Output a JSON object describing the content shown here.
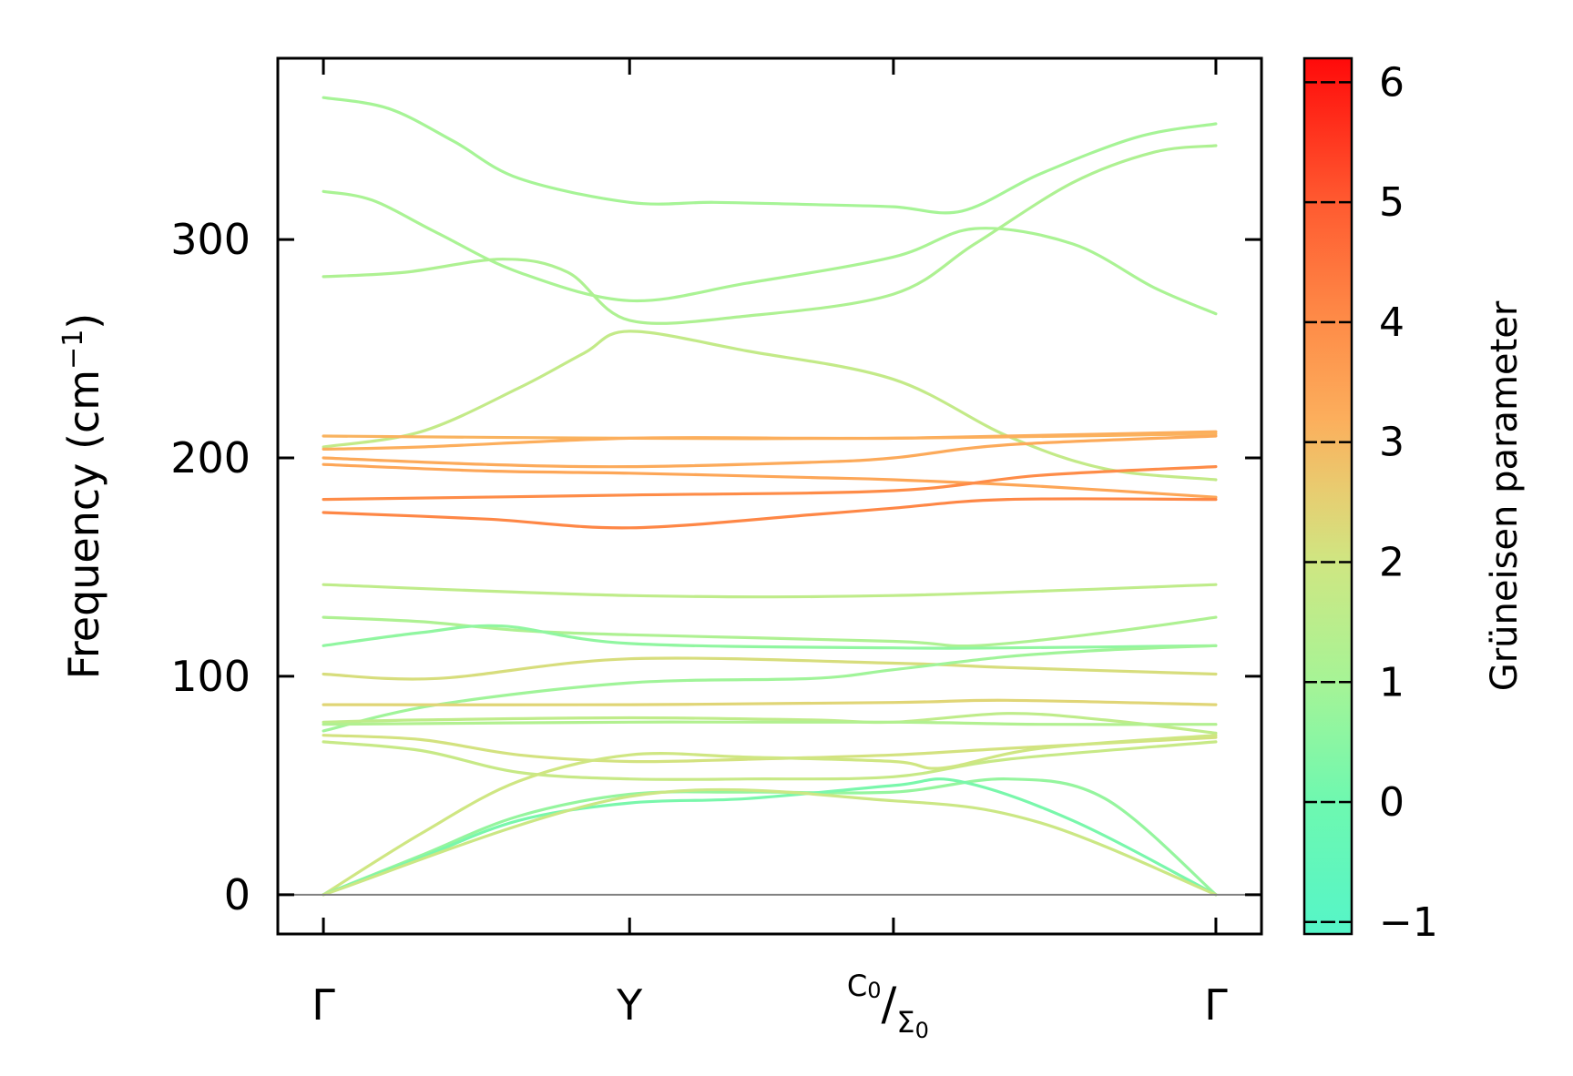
{
  "chart_data": {
    "type": "line",
    "ylabel_main": "Frequency (cm",
    "ylabel_sup": "−1",
    "ylabel_close": ")",
    "ylim": [
      -18,
      383
    ],
    "yticks": [
      0,
      100,
      200,
      300
    ],
    "xlim": [
      -0.14,
      2.88
    ],
    "xticks": [
      {
        "x": 0.0,
        "label": "Γ"
      },
      {
        "x": 0.94,
        "label": "Y"
      },
      {
        "x": 1.75,
        "label_top": "C",
        "label_top_sub": "0",
        "label_sep": "/",
        "label_bot": "Σ",
        "label_bot_sub": "0"
      },
      {
        "x": 2.74,
        "label": "Γ"
      }
    ],
    "zero_line": 0,
    "colorbar": {
      "title": "Grüneisen parameter",
      "range": [
        -1.1,
        6.2
      ],
      "ticks": [
        "−1",
        "0",
        "1",
        "2",
        "3",
        "4",
        "5",
        "6"
      ],
      "tick_values": [
        -1,
        0,
        1,
        2,
        3,
        4,
        5,
        6
      ],
      "stops": [
        {
          "v": -1.1,
          "color": "#55f5c8"
        },
        {
          "v": 0.0,
          "color": "#6ef8b0"
        },
        {
          "v": 1.0,
          "color": "#a6f496"
        },
        {
          "v": 2.0,
          "color": "#cfe682"
        },
        {
          "v": 2.6,
          "color": "#e8cc70"
        },
        {
          "v": 3.2,
          "color": "#fcae5c"
        },
        {
          "v": 4.0,
          "color": "#fe8c48"
        },
        {
          "v": 5.0,
          "color": "#ff5a30"
        },
        {
          "v": 6.2,
          "color": "#ff0a0a"
        }
      ]
    },
    "series": [
      {
        "g": 1.0,
        "x": [
          0,
          0.2,
          0.4,
          0.6,
          0.94,
          1.2,
          1.5,
          1.75,
          1.96,
          2.2,
          2.5,
          2.74
        ],
        "y": [
          365,
          360,
          345,
          328,
          317,
          317,
          316,
          315,
          313,
          330,
          347,
          353
        ]
      },
      {
        "g": 1.1,
        "x": [
          0,
          0.15,
          0.35,
          0.6,
          0.94,
          1.3,
          1.75,
          2.0,
          2.3,
          2.55,
          2.74
        ],
        "y": [
          322,
          318,
          303,
          285,
          272,
          280,
          292,
          305,
          298,
          278,
          266
        ]
      },
      {
        "g": 1.2,
        "x": [
          0,
          0.25,
          0.55,
          0.75,
          0.94,
          1.3,
          1.75,
          2.0,
          2.3,
          2.55,
          2.74
        ],
        "y": [
          283,
          285,
          291,
          285,
          263,
          265,
          275,
          298,
          326,
          340,
          343
        ]
      },
      {
        "g": 1.7,
        "x": [
          0,
          0.3,
          0.6,
          0.8,
          0.94,
          1.3,
          1.75,
          2.1,
          2.4,
          2.74
        ],
        "y": [
          205,
          212,
          232,
          248,
          258,
          249,
          236,
          210,
          195,
          190
        ]
      },
      {
        "g": 3.1,
        "x": [
          0,
          0.94,
          1.75,
          2.74
        ],
        "y": [
          210,
          209,
          209,
          211
        ]
      },
      {
        "g": 3.2,
        "x": [
          0,
          0.3,
          0.94,
          1.5,
          1.75,
          2.1,
          2.74
        ],
        "y": [
          204,
          205,
          209,
          209,
          209,
          210,
          212
        ]
      },
      {
        "g": 3.3,
        "x": [
          0,
          0.5,
          0.94,
          1.5,
          1.75,
          2.1,
          2.74
        ],
        "y": [
          200,
          197,
          196,
          198,
          200,
          206,
          210
        ]
      },
      {
        "g": 3.4,
        "x": [
          0,
          0.5,
          0.94,
          1.5,
          1.75,
          2.2,
          2.74
        ],
        "y": [
          197,
          194,
          193,
          191,
          190,
          187,
          182
        ]
      },
      {
        "g": 4.0,
        "x": [
          0,
          0.94,
          1.75,
          2.2,
          2.74
        ],
        "y": [
          181,
          183,
          185,
          192,
          196
        ]
      },
      {
        "g": 4.1,
        "x": [
          0,
          0.5,
          0.94,
          1.5,
          1.75,
          2.1,
          2.74
        ],
        "y": [
          175,
          172,
          168,
          174,
          177,
          181,
          181
        ]
      },
      {
        "g": 1.6,
        "x": [
          0,
          0.94,
          1.75,
          2.74
        ],
        "y": [
          142,
          137,
          137,
          142
        ]
      },
      {
        "g": 1.2,
        "x": [
          0,
          0.3,
          0.6,
          0.94,
          1.75,
          2.0,
          2.4,
          2.74
        ],
        "y": [
          127,
          125,
          121,
          119,
          116,
          114,
          120,
          127
        ]
      },
      {
        "g": 0.6,
        "x": [
          0,
          0.3,
          0.55,
          0.94,
          1.75,
          2.1,
          2.74
        ],
        "y": [
          114,
          120,
          123,
          115,
          113,
          113,
          114
        ]
      },
      {
        "g": 2.2,
        "x": [
          0,
          0.35,
          0.94,
          1.75,
          2.1,
          2.74
        ],
        "y": [
          101,
          99,
          108,
          106,
          104,
          101
        ]
      },
      {
        "g": 0.9,
        "x": [
          0,
          0.35,
          0.94,
          1.5,
          1.75,
          2.1,
          2.4,
          2.74
        ],
        "y": [
          75,
          87,
          97,
          99,
          103,
          109,
          112,
          114
        ]
      },
      {
        "g": 2.4,
        "x": [
          0,
          0.94,
          1.75,
          2.1,
          2.74
        ],
        "y": [
          87,
          87,
          88,
          89,
          87
        ]
      },
      {
        "g": 1.6,
        "x": [
          0,
          0.3,
          0.94,
          1.5,
          1.75,
          2.1,
          2.4,
          2.74
        ],
        "y": [
          79,
          80,
          81,
          80,
          79,
          83,
          80,
          74
        ]
      },
      {
        "g": 1.3,
        "x": [
          0,
          0.94,
          1.75,
          2.2,
          2.74
        ],
        "y": [
          78,
          79,
          79,
          78,
          78
        ]
      },
      {
        "g": 2.1,
        "x": [
          0,
          0.3,
          0.6,
          0.94,
          1.3,
          1.75,
          2.1,
          2.74
        ],
        "y": [
          73,
          71,
          64,
          61,
          62,
          64,
          67,
          72
        ]
      },
      {
        "g": 1.8,
        "x": [
          0,
          0.3,
          0.6,
          0.94,
          1.3,
          1.75,
          2.1,
          2.74
        ],
        "y": [
          70,
          66,
          56,
          53,
          53,
          54,
          62,
          70
        ]
      },
      {
        "g": 2.0,
        "x": [
          0,
          0.3,
          0.6,
          0.94,
          1.3,
          1.75,
          1.9,
          2.2,
          2.74
        ],
        "y": [
          0,
          28,
          52,
          64,
          63,
          61,
          58,
          67,
          73
        ]
      },
      {
        "g": 0.7,
        "x": [
          0,
          0.3,
          0.6,
          0.94,
          1.3,
          1.75,
          2.1,
          2.4,
          2.74
        ],
        "y": [
          0,
          18,
          36,
          46,
          47,
          47,
          53,
          44,
          0
        ]
      },
      {
        "g": 0.2,
        "x": [
          0,
          0.3,
          0.6,
          0.94,
          1.3,
          1.75,
          1.95,
          2.3,
          2.74
        ],
        "y": [
          0,
          17,
          34,
          42,
          44,
          50,
          52,
          34,
          0
        ]
      },
      {
        "g": 1.9,
        "x": [
          0,
          0.94,
          1.75,
          2.2,
          2.74
        ],
        "y": [
          0,
          45,
          43,
          33,
          0
        ]
      }
    ]
  }
}
